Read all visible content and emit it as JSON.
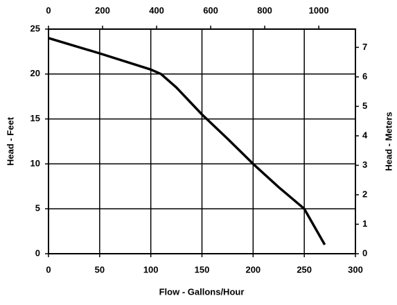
{
  "chart_data": {
    "type": "line",
    "x_label": "Flow - Gallons/Hour",
    "y_label": "Head - Feet",
    "y2_label": "Head - Meters",
    "x": [
      0,
      50,
      100,
      110,
      125,
      150,
      175,
      200,
      225,
      250,
      260,
      270
    ],
    "series": [
      {
        "color": "#000000",
        "values": [
          24,
          22.3,
          20.5,
          20,
          18.5,
          15.5,
          12.8,
          10,
          7.4,
          5,
          3,
          1
        ]
      }
    ],
    "xlim": [
      0,
      300
    ],
    "xticks": [
      0,
      50,
      100,
      150,
      200,
      250,
      300
    ],
    "ylim": [
      0,
      25
    ],
    "yticks": [
      0,
      5,
      10,
      15,
      20,
      25
    ],
    "x2lim": [
      0,
      1135.6
    ],
    "x2ticks": [
      0,
      200,
      400,
      600,
      800,
      1000
    ],
    "y2lim": [
      0,
      7.62
    ],
    "y2ticks": [
      0,
      1,
      2,
      3,
      4,
      5,
      6,
      7
    ],
    "grid": true
  }
}
